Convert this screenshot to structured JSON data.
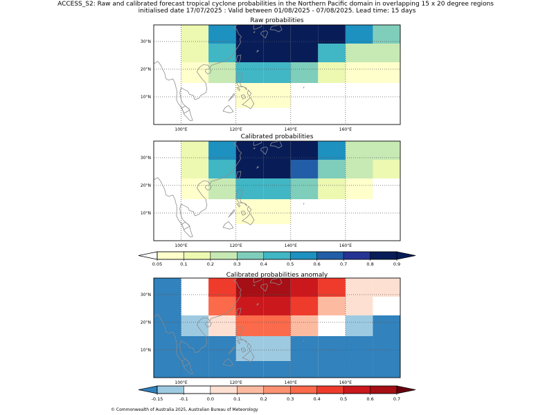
{
  "figure": {
    "title_line1": "ACCESS_S2: Raw and calibrated forecast tropical cyclone probabilities in the Northern Pacific domain in overlapping 15 x 20 degree regions",
    "title_line2": "initialised date 17/07/2025 :  Valid between 01/08/2025 - 07/08/2025. Lead time: 15 days",
    "copyright": "© Commonwealth of Australia 2025, Australian Bureau of Meteorology"
  },
  "map": {
    "lon_range": [
      90,
      180
    ],
    "lat_range": [
      0,
      36
    ],
    "lon_ticks": [
      100,
      120,
      140,
      160
    ],
    "lat_ticks": [
      10,
      20,
      30
    ],
    "lon_tick_labels": [
      "100°E",
      "120°E",
      "140°E",
      "160°E"
    ],
    "lat_tick_labels": [
      "10°N",
      "20°N",
      "30°N"
    ],
    "gridlines": true,
    "cell_lon_edges": [
      90,
      100,
      110,
      120,
      130,
      140,
      150,
      160,
      170,
      180
    ],
    "cell_lat_edges": [
      36,
      29.25,
      22.5,
      15,
      6,
      0
    ]
  },
  "colorbars": {
    "probability": {
      "tick_labels": [
        "0.05",
        "0.1",
        "0.2",
        "0.3",
        "0.4",
        "0.5",
        "0.6",
        "0.7",
        "0.8",
        "0.9"
      ],
      "colors": [
        "#ffffcc",
        "#edf8b1",
        "#c7e9b4",
        "#7fcdbb",
        "#41b6c4",
        "#1d91c0",
        "#225ea8",
        "#253494",
        "#081d58"
      ],
      "under_color": "#ffffff",
      "over_color": "#081d58"
    },
    "anomaly": {
      "tick_labels": [
        "-0.15",
        "-0.1",
        "0.0",
        "0.1",
        "0.2",
        "0.3",
        "0.4",
        "0.5",
        "0.6",
        "0.7"
      ],
      "colors": [
        "#9ecae1",
        "#ffffff",
        "#fee0d2",
        "#fcbba1",
        "#fc9272",
        "#fb6a4a",
        "#ef3b2c",
        "#cb181d",
        "#a50f15"
      ],
      "under_color": "#3182bd",
      "over_color": "#67000d"
    }
  },
  "chart_data": [
    {
      "type": "heatmap",
      "title": "Raw probabilities",
      "rows_lat_bands": [
        "29.25-36N",
        "22.5-29.25N",
        "15-22.5N",
        "6-15N",
        "0-6N"
      ],
      "cols_lon_bands": [
        "90-100E",
        "100-110E",
        "110-120E",
        "120-130E",
        "130-140E",
        "140-150E",
        "150-160E",
        "160-170E",
        "170-180E"
      ],
      "values": [
        [
          null,
          0.1,
          0.5,
          0.9,
          0.9,
          0.8,
          0.8,
          0.5,
          0.3
        ],
        [
          null,
          0.1,
          0.4,
          0.8,
          0.9,
          0.8,
          0.4,
          0.2,
          0.2
        ],
        [
          null,
          0.05,
          0.2,
          0.4,
          0.4,
          0.3,
          0.1,
          0.05,
          0.05
        ],
        [
          null,
          null,
          null,
          0.05,
          0.05,
          null,
          null,
          null,
          null
        ],
        [
          null,
          null,
          null,
          null,
          null,
          null,
          null,
          null,
          null
        ]
      ]
    },
    {
      "type": "heatmap",
      "title": "Calibrated probabilities",
      "rows_lat_bands": [
        "29.25-36N",
        "22.5-29.25N",
        "15-22.5N",
        "6-15N",
        "0-6N"
      ],
      "cols_lon_bands": [
        "90-100E",
        "100-110E",
        "110-120E",
        "120-130E",
        "130-140E",
        "140-150E",
        "150-160E",
        "160-170E",
        "170-180E"
      ],
      "values": [
        [
          null,
          0.1,
          0.5,
          0.9,
          0.8,
          0.8,
          0.5,
          0.2,
          0.2
        ],
        [
          null,
          0.1,
          0.4,
          0.8,
          0.8,
          0.6,
          0.3,
          0.2,
          0.1
        ],
        [
          null,
          0.05,
          0.2,
          0.4,
          0.4,
          0.3,
          0.1,
          0.05,
          null
        ],
        [
          null,
          null,
          null,
          0.05,
          0.05,
          null,
          null,
          null,
          null
        ],
        [
          null,
          null,
          null,
          null,
          null,
          null,
          null,
          null,
          null
        ]
      ]
    },
    {
      "type": "heatmap",
      "title": "Calibrated probabilities anomaly",
      "rows_lat_bands": [
        "29.25-36N",
        "22.5-29.25N",
        "15-22.5N",
        "6-15N",
        "0-6N"
      ],
      "cols_lon_bands": [
        "90-100E",
        "100-110E",
        "110-120E",
        "120-130E",
        "130-140E",
        "140-150E",
        "150-160E",
        "160-170E",
        "170-180E"
      ],
      "values": [
        [
          -0.2,
          -0.05,
          0.4,
          0.65,
          0.65,
          0.55,
          0.4,
          0.05,
          0.05
        ],
        [
          -0.2,
          -0.05,
          0.3,
          0.55,
          0.55,
          0.45,
          0.15,
          0.05,
          -0.05
        ],
        [
          -0.2,
          -0.15,
          0.05,
          0.35,
          0.35,
          0.15,
          -0.05,
          -0.15,
          -0.2
        ],
        [
          -0.2,
          -0.2,
          -0.2,
          -0.15,
          -0.15,
          -0.2,
          -0.2,
          -0.2,
          -0.2
        ],
        [
          -0.2,
          -0.2,
          -0.2,
          -0.2,
          -0.2,
          -0.2,
          -0.2,
          -0.2,
          -0.2
        ]
      ]
    }
  ]
}
